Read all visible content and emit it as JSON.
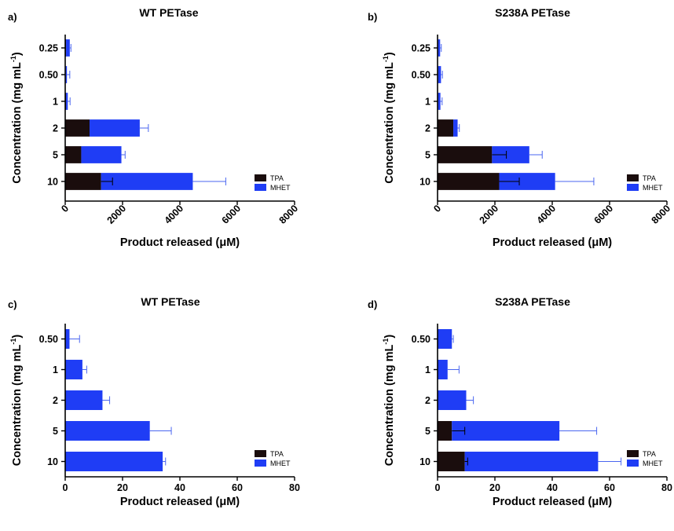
{
  "colors": {
    "TPA": "#1a0d0d",
    "MHET": "#1f3df5",
    "error_bar": "#4a66f0",
    "axis": "#000000"
  },
  "chart_data": [
    {
      "panel_label": "a)",
      "type": "bar",
      "orientation": "horizontal",
      "stacked": true,
      "title": "WT PETase",
      "xlabel": "Product released (μM)",
      "ylabel_main": "Concentration (mg mL",
      "ylabel_sup": "-1",
      "ylabel_end": ")",
      "categories": [
        "0.25",
        "0.50",
        "1",
        "2",
        "5",
        "10"
      ],
      "xlim": [
        0,
        8000
      ],
      "xticks": [
        "0",
        "2000",
        "4000",
        "6000",
        "8000"
      ],
      "xtick_values": [
        0,
        2000,
        4000,
        6000,
        8000
      ],
      "xtick_rotated": true,
      "series": [
        {
          "name": "TPA",
          "values": [
            30,
            20,
            30,
            850,
            560,
            1250
          ],
          "errors": [
            0,
            0,
            0,
            0,
            0,
            400
          ]
        },
        {
          "name": "MHET",
          "values": [
            130,
            40,
            60,
            1750,
            1400,
            3200
          ],
          "errors": [
            40,
            100,
            80,
            300,
            130,
            1150
          ]
        }
      ],
      "legend": [
        "TPA",
        "MHET"
      ],
      "legend_position": "bottom-right"
    },
    {
      "panel_label": "b)",
      "type": "bar",
      "orientation": "horizontal",
      "stacked": true,
      "title": "S238A PETase",
      "xlabel": "Product released (μM)",
      "ylabel_main": "Concentration (mg mL",
      "ylabel_sup": "-1",
      "ylabel_end": ")",
      "categories": [
        "0.25",
        "0.50",
        "1",
        "2",
        "5",
        "10"
      ],
      "xlim": [
        0,
        8000
      ],
      "xticks": [
        "0",
        "2000",
        "4000",
        "6000",
        "8000"
      ],
      "xtick_values": [
        0,
        2000,
        4000,
        6000,
        8000
      ],
      "xtick_rotated": true,
      "series": [
        {
          "name": "TPA",
          "values": [
            20,
            20,
            20,
            550,
            1900,
            2150
          ],
          "errors": [
            0,
            0,
            0,
            0,
            500,
            700
          ]
        },
        {
          "name": "MHET",
          "values": [
            70,
            100,
            80,
            150,
            1300,
            1950
          ],
          "errors": [
            40,
            50,
            60,
            60,
            450,
            1350
          ]
        }
      ],
      "legend": [
        "TPA",
        "MHET"
      ],
      "legend_position": "bottom-right"
    },
    {
      "panel_label": "c)",
      "type": "bar",
      "orientation": "horizontal",
      "stacked": true,
      "title": "WT PETase",
      "xlabel": "Product released (μM)",
      "ylabel_main": "Concentration (mg mL",
      "ylabel_sup": "-1",
      "ylabel_end": ")",
      "categories": [
        "0.50",
        "1",
        "2",
        "5",
        "10"
      ],
      "xlim": [
        0,
        80
      ],
      "xticks": [
        "0",
        "20",
        "40",
        "60",
        "80"
      ],
      "xtick_values": [
        0,
        20,
        40,
        60,
        80
      ],
      "xtick_rotated": false,
      "series": [
        {
          "name": "TPA",
          "values": [
            0,
            0,
            0,
            0,
            0
          ],
          "errors": [
            0,
            0,
            0,
            0,
            0
          ]
        },
        {
          "name": "MHET",
          "values": [
            1.5,
            6,
            13,
            29.5,
            34
          ],
          "errors": [
            3.5,
            1.5,
            2.5,
            7.5,
            1
          ]
        }
      ],
      "legend": [
        "TPA",
        "MHET"
      ],
      "legend_position": "bottom-right"
    },
    {
      "panel_label": "d)",
      "type": "bar",
      "orientation": "horizontal",
      "stacked": true,
      "title": "S238A PETase",
      "xlabel": "Product released (μM)",
      "ylabel_main": "Concentration (mg mL",
      "ylabel_sup": "-1",
      "ylabel_end": ")",
      "categories": [
        "0.50",
        "1",
        "2",
        "5",
        "10"
      ],
      "xlim": [
        0,
        80
      ],
      "xticks": [
        "0",
        "20",
        "40",
        "60",
        "80"
      ],
      "xtick_values": [
        0,
        20,
        40,
        60,
        80
      ],
      "xtick_rotated": false,
      "series": [
        {
          "name": "TPA",
          "values": [
            0,
            0,
            0,
            5,
            9.5
          ],
          "errors": [
            0,
            0,
            0,
            4.5,
            1
          ]
        },
        {
          "name": "MHET",
          "values": [
            5,
            3.5,
            10,
            37.5,
            46.5
          ],
          "errors": [
            0.5,
            4,
            2.5,
            13,
            8
          ]
        }
      ],
      "legend": [
        "TPA",
        "MHET"
      ],
      "legend_position": "bottom-right"
    }
  ]
}
